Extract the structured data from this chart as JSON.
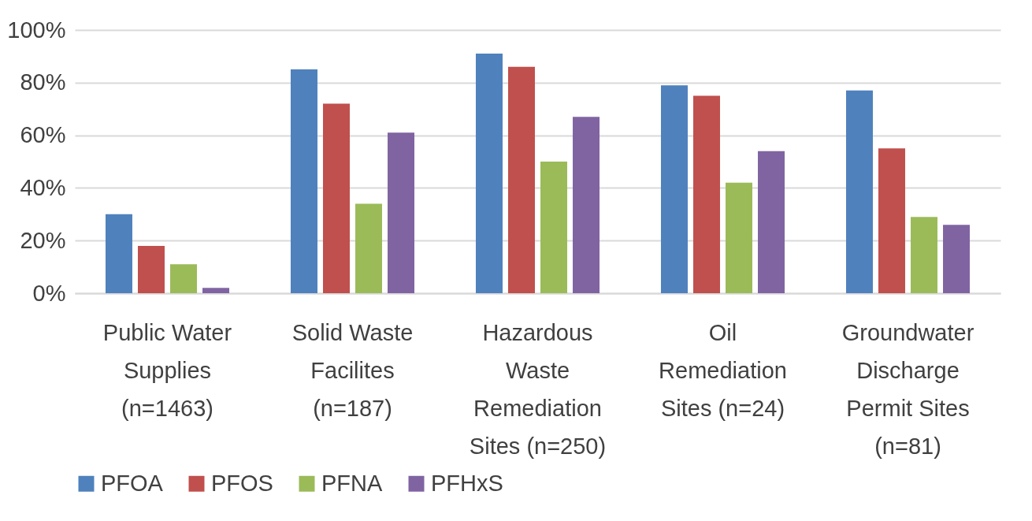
{
  "chart_data": {
    "type": "bar",
    "categories": [
      "Public Water Supplies (n=1463)",
      "Solid Waste Facilites (n=187)",
      "Hazardous Waste Remediation Sites (n=250)",
      "Oil Remediation Sites (n=24)",
      "Groundwater Discharge Permit Sites (n=81)"
    ],
    "series": [
      {
        "name": "PFOA",
        "color": "#4f81bd",
        "values": [
          30,
          85,
          91,
          79,
          77
        ]
      },
      {
        "name": "PFOS",
        "color": "#c0504d",
        "values": [
          18,
          72,
          86,
          75,
          55
        ]
      },
      {
        "name": "PFNA",
        "color": "#9bbb59",
        "values": [
          11,
          34,
          50,
          42,
          29
        ]
      },
      {
        "name": "PFHxS",
        "color": "#8064a2",
        "values": [
          2,
          61,
          67,
          54,
          26
        ]
      }
    ],
    "ylim": [
      0,
      100
    ],
    "yticks": [
      {
        "value": 0,
        "label": "0%"
      },
      {
        "value": 20,
        "label": "20%"
      },
      {
        "value": 40,
        "label": "40%"
      },
      {
        "value": 60,
        "label": "60%"
      },
      {
        "value": 80,
        "label": "80%"
      },
      {
        "value": 100,
        "label": "100%"
      }
    ],
    "grid": "y",
    "legend": "bottom"
  }
}
